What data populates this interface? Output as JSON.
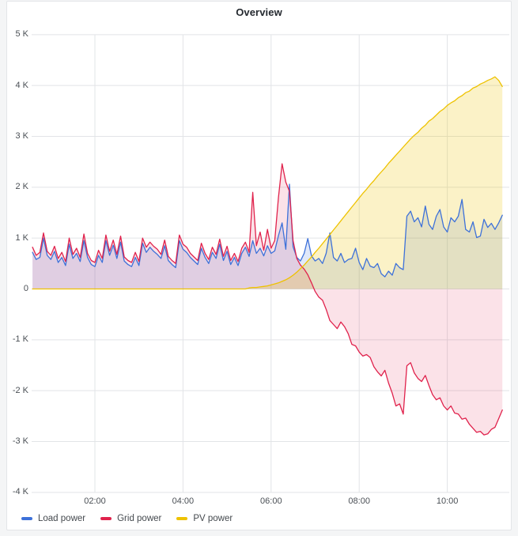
{
  "panel": {
    "title": "Overview"
  },
  "colors": {
    "page_bg": "#f4f5f6",
    "panel_bg": "#ffffff",
    "panel_border": "#e3e5e8",
    "grid_line": "#e2e4e7",
    "axis_text": "#4a4f55",
    "title_text": "#24292f",
    "load_blue": "#3d71d9",
    "grid_red": "#e0224c",
    "pv_yellow": "#eec200"
  },
  "chart_data": {
    "type": "line",
    "title": "Overview",
    "legend_position": "bottom",
    "grid": true,
    "x_axis": {
      "tick_labels": [
        "02:00",
        "04:00",
        "06:00",
        "08:00",
        "10:00"
      ],
      "tick_hours": [
        2,
        4,
        6,
        8,
        10
      ],
      "range_hours": [
        0.583,
        11.25
      ]
    },
    "y_axis": {
      "tick_labels": [
        "5 K",
        "4 K",
        "3 K",
        "2 K",
        "1 K",
        "0",
        "-1 K",
        "-2 K",
        "-3 K",
        "-4 K"
      ],
      "tick_values": [
        5,
        4,
        3,
        2,
        1,
        0,
        -1,
        -2,
        -3,
        -4
      ],
      "range": [
        -4,
        5
      ]
    },
    "t_minutes": [
      35,
      40,
      45,
      50,
      55,
      60,
      65,
      70,
      75,
      80,
      85,
      90,
      95,
      100,
      105,
      110,
      115,
      120,
      125,
      130,
      135,
      140,
      145,
      150,
      155,
      160,
      165,
      170,
      175,
      180,
      185,
      190,
      195,
      200,
      205,
      210,
      215,
      220,
      225,
      230,
      235,
      240,
      245,
      250,
      255,
      260,
      265,
      270,
      275,
      280,
      285,
      290,
      295,
      300,
      305,
      310,
      315,
      320,
      325,
      330,
      335,
      340,
      345,
      350,
      355,
      360,
      365,
      370,
      375,
      380,
      385,
      390,
      395,
      400,
      405,
      410,
      415,
      420,
      425,
      430,
      435,
      440,
      445,
      450,
      455,
      460,
      465,
      470,
      475,
      480,
      485,
      490,
      495,
      500,
      505,
      510,
      515,
      520,
      525,
      530,
      535,
      540,
      545,
      550,
      555,
      560,
      565,
      570,
      575,
      580,
      585,
      590,
      595,
      600,
      605,
      610,
      615,
      620,
      625,
      630,
      635,
      640,
      645,
      650,
      655,
      660,
      665,
      670,
      675
    ],
    "series": [
      {
        "name": "Load power",
        "color": "#3d71d9",
        "fill_opacity": 0.16,
        "values_k": [
          0.72,
          0.58,
          0.62,
          1.0,
          0.66,
          0.58,
          0.74,
          0.52,
          0.62,
          0.46,
          0.88,
          0.6,
          0.7,
          0.54,
          0.95,
          0.62,
          0.48,
          0.44,
          0.66,
          0.52,
          0.95,
          0.66,
          0.86,
          0.6,
          0.92,
          0.55,
          0.48,
          0.44,
          0.62,
          0.46,
          0.9,
          0.72,
          0.82,
          0.74,
          0.68,
          0.6,
          0.85,
          0.56,
          0.48,
          0.42,
          0.95,
          0.78,
          0.72,
          0.62,
          0.55,
          0.48,
          0.8,
          0.62,
          0.5,
          0.72,
          0.6,
          0.88,
          0.56,
          0.74,
          0.48,
          0.62,
          0.46,
          0.7,
          0.82,
          0.64,
          0.95,
          0.7,
          0.8,
          0.65,
          0.85,
          0.7,
          0.75,
          1.05,
          1.3,
          0.78,
          2.06,
          0.83,
          0.62,
          0.55,
          0.7,
          0.99,
          0.65,
          0.55,
          0.6,
          0.5,
          0.7,
          1.1,
          0.62,
          0.55,
          0.7,
          0.52,
          0.58,
          0.6,
          0.8,
          0.52,
          0.38,
          0.6,
          0.45,
          0.42,
          0.5,
          0.3,
          0.24,
          0.35,
          0.27,
          0.5,
          0.42,
          0.38,
          1.43,
          1.53,
          1.32,
          1.4,
          1.22,
          1.63,
          1.27,
          1.17,
          1.43,
          1.56,
          1.22,
          1.12,
          1.4,
          1.32,
          1.43,
          1.76,
          1.17,
          1.12,
          1.32,
          1.01,
          1.04,
          1.37,
          1.21,
          1.29,
          1.17,
          1.3,
          1.45
        ]
      },
      {
        "name": "Grid power",
        "color": "#e0224c",
        "fill_opacity": 0.13,
        "values_k": [
          0.82,
          0.66,
          0.72,
          1.1,
          0.74,
          0.66,
          0.84,
          0.6,
          0.72,
          0.54,
          1.0,
          0.68,
          0.8,
          0.62,
          1.08,
          0.7,
          0.56,
          0.52,
          0.76,
          0.6,
          1.06,
          0.74,
          0.96,
          0.68,
          1.04,
          0.63,
          0.56,
          0.52,
          0.72,
          0.54,
          1.0,
          0.82,
          0.92,
          0.84,
          0.78,
          0.68,
          0.96,
          0.64,
          0.56,
          0.5,
          1.06,
          0.88,
          0.82,
          0.7,
          0.63,
          0.56,
          0.9,
          0.7,
          0.58,
          0.82,
          0.68,
          0.98,
          0.64,
          0.84,
          0.56,
          0.7,
          0.54,
          0.8,
          0.92,
          0.72,
          1.9,
          0.85,
          1.12,
          0.76,
          1.17,
          0.8,
          0.95,
          1.8,
          2.46,
          2.1,
          1.92,
          0.95,
          0.6,
          0.47,
          0.39,
          0.28,
          0.12,
          -0.05,
          -0.16,
          -0.22,
          -0.4,
          -0.62,
          -0.7,
          -0.78,
          -0.65,
          -0.74,
          -0.88,
          -1.09,
          -1.12,
          -1.24,
          -1.32,
          -1.29,
          -1.35,
          -1.53,
          -1.63,
          -1.71,
          -1.6,
          -1.85,
          -2.05,
          -2.3,
          -2.26,
          -2.46,
          -1.51,
          -1.45,
          -1.65,
          -1.76,
          -1.82,
          -1.7,
          -1.9,
          -2.08,
          -2.18,
          -2.14,
          -2.3,
          -2.38,
          -2.3,
          -2.44,
          -2.46,
          -2.56,
          -2.54,
          -2.66,
          -2.74,
          -2.82,
          -2.8,
          -2.87,
          -2.85,
          -2.76,
          -2.72,
          -2.55,
          -2.38
        ]
      },
      {
        "name": "PV power",
        "color": "#eec200",
        "fill_opacity": 0.22,
        "values_k": [
          0,
          0,
          0,
          0,
          0,
          0,
          0,
          0,
          0,
          0,
          0,
          0,
          0,
          0,
          0,
          0,
          0,
          0,
          0,
          0,
          0,
          0,
          0,
          0,
          0,
          0,
          0,
          0,
          0,
          0,
          0,
          0,
          0,
          0,
          0,
          0,
          0,
          0,
          0,
          0,
          0,
          0,
          0,
          0,
          0,
          0,
          0,
          0,
          0,
          0,
          0,
          0,
          0,
          0,
          0,
          0,
          0,
          0,
          0,
          0.02,
          0.03,
          0.03,
          0.04,
          0.05,
          0.06,
          0.08,
          0.1,
          0.12,
          0.15,
          0.18,
          0.22,
          0.27,
          0.33,
          0.4,
          0.47,
          0.55,
          0.63,
          0.72,
          0.8,
          0.89,
          0.98,
          1.07,
          1.16,
          1.25,
          1.34,
          1.43,
          1.52,
          1.61,
          1.7,
          1.79,
          1.88,
          1.96,
          2.05,
          2.13,
          2.22,
          2.3,
          2.38,
          2.47,
          2.55,
          2.63,
          2.71,
          2.79,
          2.87,
          2.95,
          3.02,
          3.08,
          3.16,
          3.22,
          3.3,
          3.35,
          3.42,
          3.49,
          3.54,
          3.61,
          3.66,
          3.7,
          3.76,
          3.8,
          3.86,
          3.89,
          3.95,
          3.98,
          4.03,
          4.06,
          4.1,
          4.13,
          4.17,
          4.1,
          3.98
        ]
      }
    ]
  }
}
